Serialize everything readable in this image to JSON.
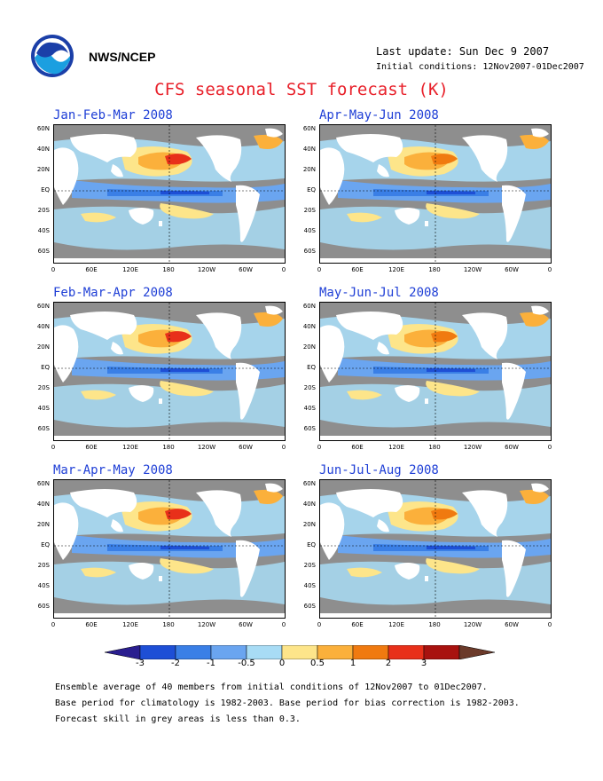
{
  "header": {
    "agency": "NWS/NCEP",
    "last_update": "Last update: Sun Dec  9 2007",
    "initial_conditions": "Initial conditions: 12Nov2007-01Dec2007",
    "title": "CFS seasonal SST forecast (K)"
  },
  "panels": [
    {
      "title": "Jan-Feb-Mar 2008"
    },
    {
      "title": "Apr-May-Jun 2008"
    },
    {
      "title": "Feb-Mar-Apr 2008"
    },
    {
      "title": "May-Jun-Jul 2008"
    },
    {
      "title": "Mar-Apr-May 2008"
    },
    {
      "title": "Jun-Jul-Aug 2008"
    }
  ],
  "axes": {
    "lat_labels": [
      "60N",
      "40N",
      "20N",
      "EQ",
      "20S",
      "40S",
      "60S"
    ],
    "lon_labels": [
      "0",
      "60E",
      "120E",
      "180",
      "120W",
      "60W",
      "0"
    ]
  },
  "colorbar": {
    "labels": [
      "-3",
      "-2",
      "-1",
      "-0.5",
      "0",
      "0.5",
      "1",
      "2",
      "3"
    ],
    "colors": [
      "#2a1e8f",
      "#1e4fd6",
      "#3a7fe6",
      "#6aa5f0",
      "#a8dcf5",
      "#fde58a",
      "#fbb03b",
      "#f07a10",
      "#e8301a",
      "#a8120f",
      "#6b3a2a"
    ]
  },
  "footer": {
    "line1": "Ensemble average of 40 members from initial conditions of 12Nov2007 to 01Dec2007.",
    "line2": "Base period for climatology is 1982-2003. Base period for bias correction is 1982-2003.",
    "line3": "Forecast skill in grey areas is less than 0.3."
  }
}
